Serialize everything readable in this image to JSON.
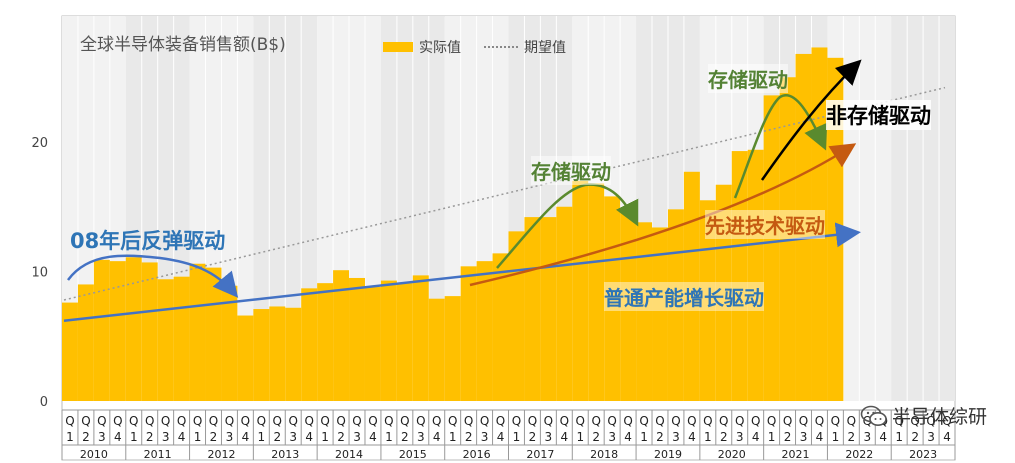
{
  "chart_data": {
    "type": "bar",
    "title": "全球半导体装备销售额(B$)",
    "legend": {
      "actual": "实际值",
      "expected": "期望值",
      "position": "top"
    },
    "ylim": [
      0,
      30
    ],
    "yticks": [
      0,
      10,
      20
    ],
    "quarter_prefix": "Q",
    "quarters": [
      "1",
      "2",
      "3",
      "4"
    ],
    "years": [
      "2010",
      "2011",
      "2012",
      "2013",
      "2014",
      "2015",
      "2016",
      "2017",
      "2018",
      "2019",
      "2020",
      "2021",
      "2022",
      "2023"
    ],
    "values": [
      7.6,
      9.0,
      10.9,
      10.8,
      11.1,
      10.7,
      9.4,
      9.6,
      10.6,
      10.3,
      8.9,
      6.6,
      7.1,
      7.3,
      7.2,
      8.7,
      9.1,
      10.1,
      9.5,
      8.8,
      9.3,
      9.1,
      9.7,
      7.9,
      8.1,
      10.4,
      10.8,
      11.4,
      13.1,
      14.2,
      14.2,
      15.0,
      17.0,
      16.8,
      15.8,
      14.6,
      13.8,
      13.4,
      14.8,
      17.7,
      15.5,
      16.7,
      19.3,
      19.4,
      23.6,
      25.0,
      26.8,
      27.3,
      26.5
    ],
    "series_colors": {
      "actual": "#FFC000",
      "trend_blue": "#4472C4",
      "trend_orange": "#C55A11",
      "trend_green": "#5A8A2E",
      "trend_black": "#000000",
      "expected": "#999999"
    },
    "trend_baseline": {
      "start": 6.2,
      "end": 13.0
    },
    "expected_line": {
      "start": 7.8,
      "end": 24.2
    },
    "annotations": {
      "rebound": "08年后反弹驱动",
      "memory1": "存储驱动",
      "memory2": "存储驱动",
      "advanced": "先进技术驱动",
      "general": "普通产能增长驱动",
      "non_memory": "非存储驱动"
    }
  },
  "watermark": {
    "text": "半导体综研",
    "icon": "wechat-icon"
  }
}
